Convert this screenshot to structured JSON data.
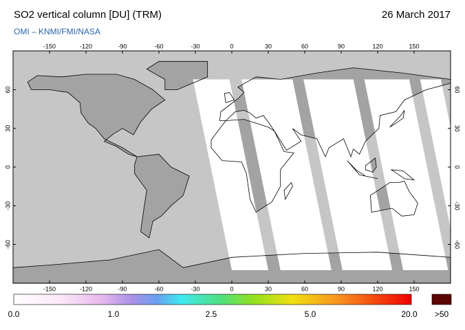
{
  "header": {
    "title": "SO2 vertical column [DU] (TRM)",
    "subtitle": "OMI  –  KNMI/FMI/NASA",
    "date": "26 March 2017"
  },
  "map": {
    "lon_ticks": [
      -150,
      -120,
      -90,
      -60,
      -30,
      0,
      30,
      60,
      90,
      120,
      150
    ],
    "lat_ticks": [
      60,
      30,
      0,
      -30,
      -60
    ]
  },
  "colorbar": {
    "labels": [
      "0.0",
      "1.0",
      "2.5",
      "5.0",
      "20.0"
    ],
    "over_label": ">50"
  }
}
